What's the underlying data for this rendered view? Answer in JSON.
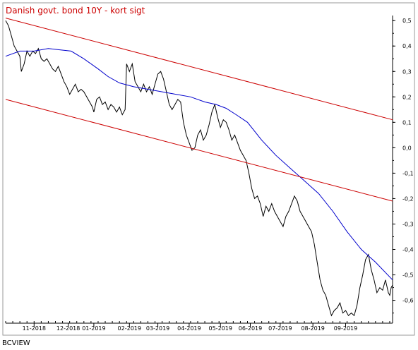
{
  "chart_data": {
    "type": "line",
    "title": "Danish govt. bond 10Y - kort sigt",
    "footer": "BCVIEW",
    "xlabel": "",
    "ylabel": "",
    "ylim": [
      -0.69,
      0.52
    ],
    "y_ticks": [
      "0,5",
      "0,4",
      "0,3",
      "0,2",
      "0,1",
      "0,0",
      "-0,1",
      "-0,2",
      "-0,3",
      "-0,4",
      "-0,5",
      "-0,6"
    ],
    "y_tick_values": [
      0.5,
      0.4,
      0.3,
      0.2,
      0.1,
      0.0,
      -0.1,
      -0.2,
      -0.3,
      -0.4,
      -0.5,
      -0.6
    ],
    "x_range": [
      0,
      272
    ],
    "x_ticks": [
      {
        "label": "11-2018",
        "x": 20
      },
      {
        "label": "12-2018",
        "x": 44
      },
      {
        "label": "01-2019",
        "x": 62
      },
      {
        "label": "02-2019",
        "x": 87
      },
      {
        "label": "03-2019",
        "x": 107
      },
      {
        "label": "04-2019",
        "x": 129
      },
      {
        "label": "05-2019",
        "x": 151
      },
      {
        "label": "06-2019",
        "x": 172
      },
      {
        "label": "07-2019",
        "x": 193
      },
      {
        "label": "08-2019",
        "x": 216
      },
      {
        "label": "09-2019",
        "x": 239
      }
    ],
    "series": [
      {
        "color": "#000000",
        "points": [
          [
            0,
            0.5
          ],
          [
            2,
            0.48
          ],
          [
            4,
            0.44
          ],
          [
            6,
            0.4
          ],
          [
            8,
            0.38
          ],
          [
            10,
            0.36
          ],
          [
            11,
            0.3
          ],
          [
            13,
            0.33
          ],
          [
            15,
            0.38
          ],
          [
            17,
            0.36
          ],
          [
            19,
            0.38
          ],
          [
            21,
            0.37
          ],
          [
            23,
            0.39
          ],
          [
            25,
            0.35
          ],
          [
            27,
            0.34
          ],
          [
            29,
            0.35
          ],
          [
            31,
            0.33
          ],
          [
            33,
            0.31
          ],
          [
            35,
            0.3
          ],
          [
            37,
            0.32
          ],
          [
            39,
            0.29
          ],
          [
            41,
            0.26
          ],
          [
            43,
            0.24
          ],
          [
            45,
            0.21
          ],
          [
            47,
            0.23
          ],
          [
            49,
            0.25
          ],
          [
            51,
            0.22
          ],
          [
            53,
            0.23
          ],
          [
            55,
            0.22
          ],
          [
            57,
            0.2
          ],
          [
            59,
            0.18
          ],
          [
            61,
            0.16
          ],
          [
            62,
            0.14
          ],
          [
            64,
            0.19
          ],
          [
            66,
            0.2
          ],
          [
            68,
            0.17
          ],
          [
            70,
            0.18
          ],
          [
            72,
            0.15
          ],
          [
            74,
            0.17
          ],
          [
            76,
            0.16
          ],
          [
            78,
            0.14
          ],
          [
            80,
            0.16
          ],
          [
            82,
            0.13
          ],
          [
            84,
            0.15
          ],
          [
            85,
            0.33
          ],
          [
            87,
            0.3
          ],
          [
            89,
            0.33
          ],
          [
            91,
            0.26
          ],
          [
            93,
            0.24
          ],
          [
            95,
            0.22
          ],
          [
            97,
            0.25
          ],
          [
            99,
            0.22
          ],
          [
            101,
            0.24
          ],
          [
            103,
            0.21
          ],
          [
            105,
            0.25
          ],
          [
            107,
            0.29
          ],
          [
            109,
            0.3
          ],
          [
            111,
            0.27
          ],
          [
            113,
            0.22
          ],
          [
            115,
            0.17
          ],
          [
            117,
            0.15
          ],
          [
            119,
            0.17
          ],
          [
            121,
            0.19
          ],
          [
            123,
            0.18
          ],
          [
            125,
            0.1
          ],
          [
            127,
            0.05
          ],
          [
            129,
            0.02
          ],
          [
            131,
            -0.01
          ],
          [
            133,
            0.0
          ],
          [
            135,
            0.05
          ],
          [
            137,
            0.07
          ],
          [
            139,
            0.03
          ],
          [
            141,
            0.05
          ],
          [
            143,
            0.09
          ],
          [
            145,
            0.14
          ],
          [
            147,
            0.17
          ],
          [
            149,
            0.12
          ],
          [
            151,
            0.08
          ],
          [
            153,
            0.11
          ],
          [
            155,
            0.1
          ],
          [
            157,
            0.07
          ],
          [
            159,
            0.03
          ],
          [
            161,
            0.05
          ],
          [
            163,
            0.02
          ],
          [
            165,
            -0.01
          ],
          [
            167,
            -0.03
          ],
          [
            169,
            -0.05
          ],
          [
            171,
            -0.1
          ],
          [
            173,
            -0.16
          ],
          [
            175,
            -0.2
          ],
          [
            177,
            -0.19
          ],
          [
            179,
            -0.22
          ],
          [
            181,
            -0.27
          ],
          [
            183,
            -0.23
          ],
          [
            185,
            -0.25
          ],
          [
            187,
            -0.22
          ],
          [
            189,
            -0.25
          ],
          [
            191,
            -0.27
          ],
          [
            193,
            -0.29
          ],
          [
            195,
            -0.31
          ],
          [
            197,
            -0.27
          ],
          [
            199,
            -0.25
          ],
          [
            201,
            -0.22
          ],
          [
            203,
            -0.19
          ],
          [
            205,
            -0.21
          ],
          [
            207,
            -0.25
          ],
          [
            209,
            -0.27
          ],
          [
            211,
            -0.29
          ],
          [
            213,
            -0.31
          ],
          [
            215,
            -0.33
          ],
          [
            217,
            -0.38
          ],
          [
            219,
            -0.45
          ],
          [
            221,
            -0.52
          ],
          [
            223,
            -0.56
          ],
          [
            225,
            -0.58
          ],
          [
            227,
            -0.62
          ],
          [
            229,
            -0.66
          ],
          [
            231,
            -0.64
          ],
          [
            233,
            -0.63
          ],
          [
            235,
            -0.61
          ],
          [
            237,
            -0.65
          ],
          [
            239,
            -0.64
          ],
          [
            241,
            -0.66
          ],
          [
            243,
            -0.65
          ],
          [
            245,
            -0.66
          ],
          [
            247,
            -0.62
          ],
          [
            249,
            -0.55
          ],
          [
            251,
            -0.5
          ],
          [
            253,
            -0.44
          ],
          [
            255,
            -0.42
          ],
          [
            257,
            -0.48
          ],
          [
            259,
            -0.52
          ],
          [
            261,
            -0.57
          ],
          [
            263,
            -0.55
          ],
          [
            265,
            -0.56
          ],
          [
            267,
            -0.52
          ],
          [
            269,
            -0.57
          ],
          [
            270,
            -0.58
          ],
          [
            271,
            -0.55
          ],
          [
            272,
            -0.54
          ]
        ]
      },
      {
        "color": "#0000cc",
        "points": [
          [
            0,
            0.36
          ],
          [
            10,
            0.38
          ],
          [
            20,
            0.38
          ],
          [
            30,
            0.39
          ],
          [
            38,
            0.385
          ],
          [
            46,
            0.38
          ],
          [
            55,
            0.35
          ],
          [
            65,
            0.31
          ],
          [
            72,
            0.28
          ],
          [
            80,
            0.255
          ],
          [
            90,
            0.24
          ],
          [
            100,
            0.23
          ],
          [
            110,
            0.22
          ],
          [
            120,
            0.21
          ],
          [
            130,
            0.2
          ],
          [
            140,
            0.18
          ],
          [
            148,
            0.17
          ],
          [
            155,
            0.155
          ],
          [
            162,
            0.13
          ],
          [
            170,
            0.1
          ],
          [
            180,
            0.03
          ],
          [
            190,
            -0.03
          ],
          [
            200,
            -0.08
          ],
          [
            210,
            -0.13
          ],
          [
            220,
            -0.18
          ],
          [
            230,
            -0.25
          ],
          [
            240,
            -0.33
          ],
          [
            250,
            -0.4
          ],
          [
            260,
            -0.45
          ],
          [
            272,
            -0.52
          ]
        ]
      },
      {
        "color": "#cc0000",
        "points": [
          [
            0,
            0.51
          ],
          [
            272,
            0.11
          ]
        ]
      },
      {
        "color": "#cc0000",
        "points": [
          [
            0,
            0.19
          ],
          [
            272,
            -0.21
          ]
        ]
      }
    ]
  }
}
